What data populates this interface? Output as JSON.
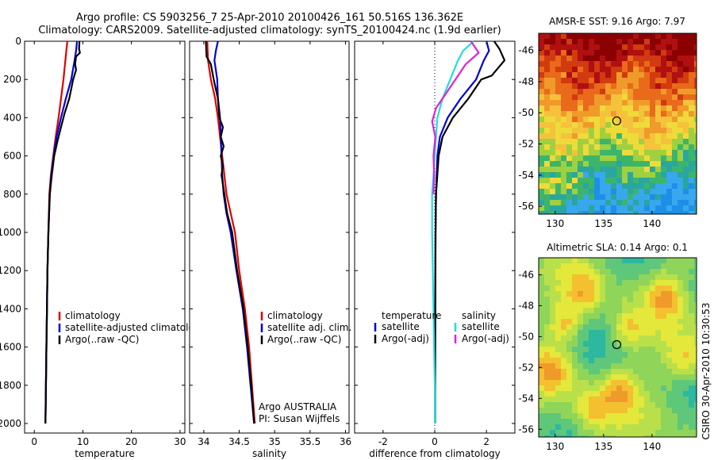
{
  "title_line1": "Argo profile: CS 5903256_7 25-Apr-2010 20100426_161 50.516S 136.362E",
  "title_line2": "Climatology: CARS2009. Satellite-adjusted climatology: synTS_20100424.nc (1.9d earlier)",
  "side_stamp": "CSIRO 30-Apr-2010 10:30:53",
  "colors": {
    "climatology": "#e00000",
    "satellite": "#0000dd",
    "argo": "#000000",
    "sat_salinity": "#22dddd",
    "argo_salinity": "#dd22dd"
  },
  "chart_data": [
    {
      "id": "temperature",
      "type": "line",
      "xlabel": "temperature",
      "ylabel": "",
      "xlim": [
        -2,
        31
      ],
      "ylim": [
        2050,
        0
      ],
      "x_ticks": [
        "0",
        "10",
        "20",
        "30"
      ],
      "y_ticks": [
        "0",
        "200",
        "400",
        "600",
        "800",
        "1000",
        "1200",
        "1400",
        "1600",
        "1800",
        "2000"
      ],
      "legend": [
        "climatology",
        "satellite-adjusted climatology",
        "Argo(..raw -QC)"
      ],
      "legend_position": "lower-middle",
      "series": [
        {
          "name": "climatology",
          "color": "#e00000",
          "points": [
            [
              6.8,
              0
            ],
            [
              6.6,
              50
            ],
            [
              6.4,
              100
            ],
            [
              6.0,
              200
            ],
            [
              5.5,
              300
            ],
            [
              5.0,
              400
            ],
            [
              4.4,
              500
            ],
            [
              3.9,
              600
            ],
            [
              3.4,
              700
            ],
            [
              3.1,
              800
            ],
            [
              2.9,
              1000
            ],
            [
              2.7,
              1200
            ],
            [
              2.6,
              1400
            ],
            [
              2.5,
              1600
            ],
            [
              2.4,
              1800
            ],
            [
              2.3,
              2000
            ]
          ]
        },
        {
          "name": "satellite-adjusted climatology",
          "color": "#0000dd",
          "points": [
            [
              8.8,
              0
            ],
            [
              8.6,
              50
            ],
            [
              8.3,
              100
            ],
            [
              7.6,
              200
            ],
            [
              6.5,
              300
            ],
            [
              5.5,
              400
            ],
            [
              4.6,
              500
            ],
            [
              4.0,
              600
            ],
            [
              3.5,
              700
            ],
            [
              3.2,
              800
            ],
            [
              2.9,
              1000
            ],
            [
              2.7,
              1200
            ],
            [
              2.6,
              1400
            ],
            [
              2.5,
              1600
            ],
            [
              2.4,
              1800
            ],
            [
              2.3,
              2000
            ]
          ]
        },
        {
          "name": "Argo(..raw -QC)",
          "color": "#000000",
          "points": [
            [
              9.3,
              0
            ],
            [
              9.2,
              40
            ],
            [
              9.4,
              60
            ],
            [
              8.6,
              80
            ],
            [
              8.4,
              120
            ],
            [
              8.6,
              150
            ],
            [
              8.0,
              200
            ],
            [
              7.2,
              300
            ],
            [
              6.2,
              380
            ],
            [
              5.6,
              440
            ],
            [
              4.8,
              520
            ],
            [
              4.1,
              600
            ],
            [
              3.6,
              700
            ],
            [
              3.2,
              800
            ],
            [
              2.9,
              1000
            ],
            [
              2.7,
              1200
            ],
            [
              2.6,
              1400
            ],
            [
              2.5,
              1600
            ],
            [
              2.4,
              1800
            ],
            [
              2.3,
              2000
            ]
          ]
        }
      ]
    },
    {
      "id": "salinity",
      "type": "line",
      "xlabel": "salinity",
      "ylabel": "",
      "xlim": [
        33.8,
        36.05
      ],
      "ylim": [
        2050,
        0
      ],
      "x_ticks": [
        "34",
        "34.5",
        "35",
        "35.5",
        "36"
      ],
      "legend": [
        "climatology",
        "satellite adj. clim.",
        "Argo(..raw -QC)"
      ],
      "legend_position": "lower-right",
      "annotations": [
        "Argo AUSTRALIA",
        "PI: Susan Wijffels"
      ],
      "series": [
        {
          "name": "climatology",
          "color": "#e00000",
          "points": [
            [
              34.05,
              0
            ],
            [
              34.06,
              100
            ],
            [
              34.1,
              200
            ],
            [
              34.16,
              300
            ],
            [
              34.2,
              400
            ],
            [
              34.23,
              500
            ],
            [
              34.26,
              600
            ],
            [
              34.29,
              700
            ],
            [
              34.32,
              800
            ],
            [
              34.38,
              900
            ],
            [
              34.44,
              1000
            ],
            [
              34.5,
              1200
            ],
            [
              34.58,
              1400
            ],
            [
              34.64,
              1600
            ],
            [
              34.68,
              1800
            ],
            [
              34.72,
              2000
            ]
          ]
        },
        {
          "name": "satellite adj. clim.",
          "color": "#0000dd",
          "points": [
            [
              34.2,
              0
            ],
            [
              34.17,
              50
            ],
            [
              34.15,
              100
            ],
            [
              34.19,
              200
            ],
            [
              34.2,
              300
            ],
            [
              34.23,
              400
            ],
            [
              34.24,
              500
            ],
            [
              34.25,
              600
            ],
            [
              34.26,
              700
            ],
            [
              34.28,
              800
            ],
            [
              34.32,
              900
            ],
            [
              34.38,
              1000
            ],
            [
              34.46,
              1200
            ],
            [
              34.55,
              1400
            ],
            [
              34.61,
              1600
            ],
            [
              34.66,
              1800
            ],
            [
              34.71,
              2000
            ]
          ]
        },
        {
          "name": "Argo(..raw -QC)",
          "color": "#000000",
          "points": [
            [
              34.03,
              0
            ],
            [
              34.04,
              80
            ],
            [
              34.1,
              120
            ],
            [
              34.14,
              200
            ],
            [
              34.2,
              300
            ],
            [
              34.22,
              400
            ],
            [
              34.27,
              450
            ],
            [
              34.24,
              500
            ],
            [
              34.28,
              550
            ],
            [
              34.24,
              600
            ],
            [
              34.27,
              650
            ],
            [
              34.25,
              700
            ],
            [
              34.27,
              750
            ],
            [
              34.29,
              800
            ],
            [
              34.33,
              900
            ],
            [
              34.4,
              1000
            ],
            [
              34.47,
              1200
            ],
            [
              34.56,
              1400
            ],
            [
              34.62,
              1600
            ],
            [
              34.67,
              1800
            ],
            [
              34.71,
              2000
            ]
          ]
        }
      ]
    },
    {
      "id": "difference",
      "type": "line",
      "xlabel": "difference from climatology",
      "ylabel": "",
      "xlim": [
        -3.1,
        3.1
      ],
      "ylim": [
        2050,
        0
      ],
      "x_ticks": [
        "-2",
        "0",
        "2"
      ],
      "legend_temperature": {
        "heading": "temperature",
        "entries": [
          "satellite",
          "Argo(-adj)"
        ]
      },
      "legend_salinity": {
        "heading": "salinity",
        "entries": [
          "satellite",
          "Argo(-adj)"
        ]
      },
      "series": [
        {
          "name": "satellite",
          "group": "temperature",
          "color": "#0000dd",
          "points": [
            [
              2.0,
              0
            ],
            [
              2.1,
              50
            ],
            [
              1.9,
              100
            ],
            [
              1.6,
              200
            ],
            [
              1.0,
              300
            ],
            [
              0.5,
              400
            ],
            [
              0.2,
              500
            ],
            [
              0.1,
              600
            ],
            [
              0.05,
              800
            ],
            [
              0.03,
              1000
            ],
            [
              0.02,
              1400
            ],
            [
              0.01,
              2000
            ]
          ]
        },
        {
          "name": "Argo(-adj)",
          "group": "temperature",
          "color": "#000000",
          "points": [
            [
              2.3,
              0
            ],
            [
              2.5,
              40
            ],
            [
              2.7,
              100
            ],
            [
              2.2,
              180
            ],
            [
              1.8,
              200
            ],
            [
              1.3,
              300
            ],
            [
              0.7,
              400
            ],
            [
              0.3,
              500
            ],
            [
              0.15,
              600
            ],
            [
              0.1,
              700
            ],
            [
              0.05,
              800
            ],
            [
              0.03,
              1000
            ],
            [
              0.02,
              1400
            ],
            [
              0.01,
              2000
            ]
          ]
        },
        {
          "name": "satellite",
          "group": "salinity",
          "color": "#22dddd",
          "points": [
            [
              1.5,
              0
            ],
            [
              1.1,
              50
            ],
            [
              0.9,
              100
            ],
            [
              0.6,
              200
            ],
            [
              0.3,
              300
            ],
            [
              0.1,
              400
            ],
            [
              0.05,
              500
            ],
            [
              0.0,
              600
            ],
            [
              -0.1,
              800
            ],
            [
              -0.1,
              1000
            ],
            [
              -0.05,
              1400
            ],
            [
              0.0,
              1800
            ],
            [
              0.0,
              2000
            ]
          ]
        },
        {
          "name": "Argo(-adj)",
          "group": "salinity",
          "color": "#dd22dd",
          "points": [
            [
              1.4,
              0
            ],
            [
              1.7,
              60
            ],
            [
              1.2,
              120
            ],
            [
              0.8,
              200
            ],
            [
              0.3,
              300
            ],
            [
              0.05,
              350
            ],
            [
              -0.1,
              420
            ],
            [
              0.02,
              500
            ],
            [
              -0.05,
              600
            ],
            [
              -0.02,
              700
            ],
            [
              -0.05,
              800
            ]
          ]
        }
      ]
    }
  ],
  "maps": [
    {
      "id": "sst",
      "title": "AMSR-E SST: 9.16 Argo: 7.97",
      "x_ticks": [
        "130",
        "135",
        "140"
      ],
      "y_ticks": [
        "-46",
        "-48",
        "-50",
        "-52",
        "-54",
        "-56"
      ],
      "marker": {
        "lon": 136.36,
        "lat": -50.52
      }
    },
    {
      "id": "sla",
      "title": "Altimetric SLA: 0.14 Argo: 0.1",
      "x_ticks": [
        "130",
        "135",
        "140"
      ],
      "y_ticks": [
        "-46",
        "-48",
        "-50",
        "-52",
        "-54",
        "-56"
      ],
      "marker": {
        "lon": 136.36,
        "lat": -50.52
      }
    }
  ]
}
